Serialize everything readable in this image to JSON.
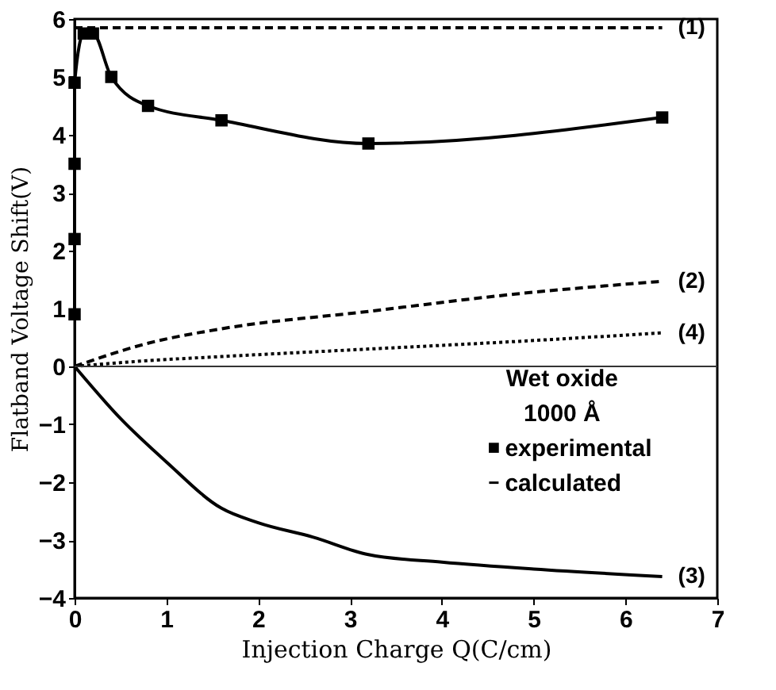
{
  "chart_data": {
    "type": "line",
    "xlabel": "Injection Charge Q(C/cm)",
    "ylabel": "Flatband Voltage Shift(V)",
    "legend_title": "Wet oxide\n1000 Å",
    "xlim": [
      0,
      7
    ],
    "xticks": [
      0,
      1,
      2,
      3,
      4,
      5,
      6,
      7
    ],
    "ylim": [
      -4,
      6
    ],
    "yticks": [
      -4,
      -3,
      -2,
      -1,
      0,
      1,
      2,
      3,
      4,
      5,
      6
    ],
    "grid": false,
    "legend": "right",
    "ref_lines": [
      {
        "axis": "y",
        "value": 0,
        "color": "#333333",
        "line_style": "solid"
      }
    ],
    "annotations": [
      "calculated"
    ],
    "series": [
      {
        "name": "experimental",
        "color": "#000000",
        "marker": "square",
        "line_style": "solid",
        "x": [
          0,
          0,
          0,
          0,
          0.1,
          0.2,
          0.4,
          0.8,
          1.6,
          3.2,
          6.4
        ],
        "values": [
          0.9,
          2.2,
          3.5,
          4.9,
          5.75,
          5.75,
          5.0,
          4.5,
          4.25,
          3.85,
          4.3
        ]
      },
      {
        "name": "(1)",
        "color": "#000000",
        "marker": "none",
        "line_style": "dashed",
        "x": [
          0,
          6.4
        ],
        "values": [
          5.85,
          5.85
        ]
      },
      {
        "name": "(2)",
        "color": "#000000",
        "marker": "none",
        "line_style": "dashed",
        "x": [
          0,
          0.8,
          1.6,
          3.2,
          4.8,
          6.4
        ],
        "values": [
          0,
          0.4,
          0.65,
          0.95,
          1.25,
          1.47
        ]
      },
      {
        "name": "(4)",
        "color": "#000000",
        "marker": "none",
        "line_style": "dotted",
        "x": [
          0,
          0.8,
          1.6,
          3.2,
          4.8,
          6.4
        ],
        "values": [
          0,
          0.1,
          0.17,
          0.3,
          0.43,
          0.58
        ]
      },
      {
        "name": "(3)",
        "color": "#000000",
        "marker": "none",
        "line_style": "solid",
        "x": [
          0,
          0.5,
          1.0,
          1.6,
          2.0,
          2.6,
          3.2,
          4.0,
          5.0,
          6.4
        ],
        "values": [
          0,
          -0.9,
          -1.65,
          -2.45,
          -2.7,
          -2.95,
          -3.25,
          -3.38,
          -3.5,
          -3.63
        ]
      }
    ]
  }
}
